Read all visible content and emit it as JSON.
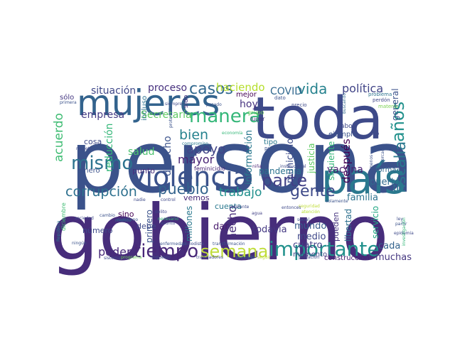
{
  "words": [
    {
      "text": "persona",
      "color": "#3b528b"
    },
    {
      "text": "gobierno",
      "color": "#472d7b"
    },
    {
      "text": "toda",
      "color": "#3e4a89"
    },
    {
      "text": "mujeres",
      "color": "#33638d"
    },
    {
      "text": "país",
      "color": "#2a788e"
    },
    {
      "text": "violencia",
      "color": "#3b528b"
    },
    {
      "text": "importante",
      "color": "#21918c"
    },
    {
      "text": "tiempo",
      "color": "#482878"
    },
    {
      "text": "semana",
      "color": "#c0dd3a"
    },
    {
      "text": "manera",
      "color": "#35b779"
    },
    {
      "text": "gente",
      "color": "#3e4a89"
    },
    {
      "text": "parte",
      "color": "#424086"
    },
    {
      "text": "mismo",
      "color": "#2c728e"
    },
    {
      "text": "corrupción",
      "color": "#2d708e"
    },
    {
      "text": "fiscalía",
      "color": "#2a788e"
    },
    {
      "text": "años",
      "color": "#21918c"
    },
    {
      "text": "casos",
      "color": "#31688e"
    },
    {
      "text": "vida",
      "color": "#26828e"
    },
    {
      "text": "política",
      "color": "#414487"
    },
    {
      "text": "pueblo",
      "color": "#33638d"
    },
    {
      "text": "trabajo",
      "color": "#21908d"
    },
    {
      "text": "apoyo",
      "color": "#414487"
    },
    {
      "text": "bien",
      "color": "#26828e"
    },
    {
      "text": "mayor",
      "color": "#482475"
    },
    {
      "text": "hecho",
      "color": "#472c7a"
    },
    {
      "text": "poder",
      "color": "#482979"
    },
    {
      "text": "situación",
      "color": "#3f4889"
    },
    {
      "text": "empresa",
      "color": "#443a83"
    },
    {
      "text": "haciendo",
      "color": "#b5de2b"
    },
    {
      "text": "proceso",
      "color": "#46307e"
    },
    {
      "text": "COVID",
      "color": "#31688e"
    },
    {
      "text": "Secretaría",
      "color": "#5ec962"
    },
    {
      "text": "hoy",
      "color": "#46337f"
    },
    {
      "text": "acuerdo",
      "color": "#3fbc73"
    },
    {
      "text": "reducción",
      "color": "#35b779"
    },
    {
      "text": "salud",
      "color": "#4ac16d"
    },
    {
      "text": "derecho",
      "color": "#3b528b"
    },
    {
      "text": "información",
      "color": "#2a788e"
    },
    {
      "text": "municipio",
      "color": "#3e4c8a"
    },
    {
      "text": "siguiente",
      "color": "#35b779"
    },
    {
      "text": "después",
      "color": "#440154"
    },
    {
      "text": "general",
      "color": "#3b528b"
    },
    {
      "text": "vacuna",
      "color": "#482173"
    },
    {
      "text": "familia",
      "color": "#2c728e"
    },
    {
      "text": "puerto",
      "color": "#31688e"
    },
    {
      "text": "mundo",
      "color": "#365c8d"
    },
    {
      "text": "todavía",
      "color": "#443983"
    },
    {
      "text": "cuatro",
      "color": "#424086"
    },
    {
      "text": "medio",
      "color": "#3f4889"
    },
    {
      "text": "cada",
      "color": "#33638d"
    },
    {
      "text": "muchas",
      "color": "#453781"
    },
    {
      "text": "pandemia",
      "color": "#2c728e"
    },
    {
      "text": "justicia",
      "color": "#5ec962"
    },
    {
      "text": "libertad",
      "color": "#2d708e"
    },
    {
      "text": "servicio",
      "color": "#22a884"
    },
    {
      "text": "pueden",
      "color": "#46337f"
    },
    {
      "text": "millones",
      "color": "#2a788e"
    },
    {
      "text": "dar",
      "color": "#481b6d"
    },
    {
      "text": "primero",
      "color": "#3b528b"
    },
    {
      "text": "debe",
      "color": "#3e4a89"
    },
    {
      "text": "sino",
      "color": "#440154"
    },
    {
      "text": "número",
      "color": "#3e4a89"
    },
    {
      "text": "cosa",
      "color": "#3e4989"
    },
    {
      "text": "punto",
      "color": "#472f7d"
    },
    {
      "text": "dinero",
      "color": "#3b528b"
    },
    {
      "text": "vemos",
      "color": "#482878"
    },
    {
      "text": "cuenta",
      "color": "#2a788e"
    },
    {
      "text": "momento",
      "color": "#414487"
    },
    {
      "text": "construcción",
      "color": "#482173"
    },
    {
      "text": "forma",
      "color": "#31688e"
    },
    {
      "text": "mejor",
      "color": "#440154"
    },
    {
      "text": "incluso",
      "color": "#2c728e"
    },
    {
      "text": "sólo",
      "color": "#453882"
    },
    {
      "text": "sido",
      "color": "#46307e"
    },
    {
      "text": "feminicidio",
      "color": "#482475"
    },
    {
      "text": "tipo",
      "color": "#2a788e"
    },
    {
      "text": "cabo",
      "color": "#3e4989"
    },
    {
      "text": "ejemplo",
      "color": "#3b528b"
    },
    {
      "text": "diciembre",
      "color": "#3fbc73"
    },
    {
      "text": "grupo",
      "color": "#6ccd5a"
    },
    {
      "text": "lugar",
      "color": "#453781"
    },
    {
      "text": "dato",
      "color": "#3b528b"
    },
    {
      "text": "precio",
      "color": "#3e4a89"
    },
    {
      "text": "problema",
      "color": "#2c728e"
    },
    {
      "text": "perdón",
      "color": "#3f4788"
    },
    {
      "text": "materia",
      "color": "#7ad151"
    },
    {
      "text": "primera",
      "color": "#3b528b"
    },
    {
      "text": "siempre",
      "color": "#3e4a89"
    },
    {
      "text": "pasado",
      "color": "#3b528b"
    },
    {
      "text": "compromiso",
      "color": "#2a788e"
    },
    {
      "text": "respeto",
      "color": "#3e4989"
    },
    {
      "text": "economía",
      "color": "#35b779"
    },
    {
      "text": "público",
      "color": "#3b528b"
    },
    {
      "text": "ocho",
      "color": "#3e4a89"
    },
    {
      "text": "niña",
      "color": "#482173"
    },
    {
      "text": "agua",
      "color": "#424086"
    },
    {
      "text": "social",
      "color": "#3b528b"
    },
    {
      "text": "control",
      "color": "#3f4889"
    },
    {
      "text": "nadie",
      "color": "#3e4a89"
    },
    {
      "text": "mexicano",
      "color": "#3b528b"
    },
    {
      "text": "sociedad",
      "color": "#3e4989"
    },
    {
      "text": "cambio",
      "color": "#3b528b"
    },
    {
      "text": "medida",
      "color": "#31688e"
    },
    {
      "text": "asunto",
      "color": "#3e4a89"
    },
    {
      "text": "enfermedad",
      "color": "#3b528b"
    },
    {
      "text": "periodista",
      "color": "#3e4a89"
    },
    {
      "text": "transformación",
      "color": "#3b528b"
    },
    {
      "text": "trabajadores",
      "color": "#3f4889"
    },
    {
      "text": "principio",
      "color": "#2a788e"
    },
    {
      "text": "población",
      "color": "#3e4a89"
    },
    {
      "text": "seguir",
      "color": "#c0dd3a"
    },
    {
      "text": "ningún",
      "color": "#3b528b"
    },
    {
      "text": "sistema",
      "color": "#3e4989"
    },
    {
      "text": "programa",
      "color": "#6ccd5a"
    },
    {
      "text": "impuesto",
      "color": "#3b528b"
    },
    {
      "text": "ley",
      "color": "#3e4a89"
    },
    {
      "text": "partir",
      "color": "#3b528b"
    },
    {
      "text": "epidemia",
      "color": "#3e4989"
    },
    {
      "text": "investigación",
      "color": "#35b779"
    },
    {
      "text": "atención",
      "color": "#b5de2b"
    },
    {
      "text": "República",
      "color": "#2a788e"
    },
    {
      "text": "protección",
      "color": "#3b528b"
    },
    {
      "text": "institucional",
      "color": "#3e4a89"
    },
    {
      "text": "adelante",
      "color": "#3e4989"
    },
    {
      "text": "solamente",
      "color": "#3b528b"
    },
    {
      "text": "buscando",
      "color": "#31688e"
    },
    {
      "text": "delito",
      "color": "#3e4a89"
    },
    {
      "text": "menos",
      "color": "#3b528b"
    },
    {
      "text": "necesario",
      "color": "#35b779"
    },
    {
      "text": "seguridad",
      "color": "#c0dd3a"
    },
    {
      "text": "mercado",
      "color": "#3b528b"
    },
    {
      "text": "entonces",
      "color": "#3e4989"
    },
    {
      "text": "calle",
      "color": "#3b528b"
    }
  ]
}
